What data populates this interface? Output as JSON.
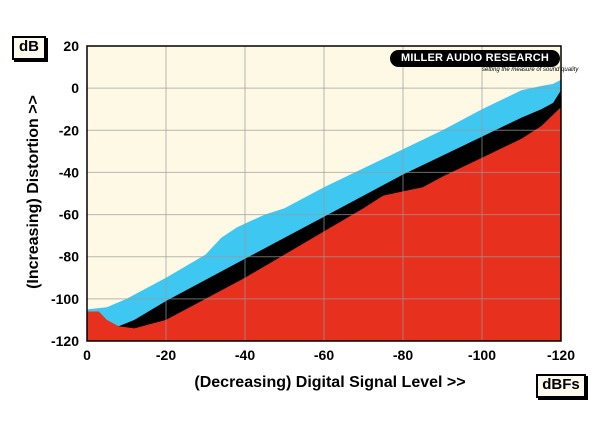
{
  "chart_data": {
    "type": "area",
    "title": "",
    "xlabel": "(Decreasing) Digital Signal Level >>",
    "ylabel": "(Increasing) Distortion >>",
    "x_unit": "dBFs",
    "y_unit": "dB",
    "xlim": [
      0,
      -120
    ],
    "ylim": [
      -120,
      20
    ],
    "x_ticks": [
      0,
      -20,
      -40,
      -60,
      -80,
      -100,
      -120
    ],
    "y_ticks": [
      20,
      0,
      -20,
      -40,
      -60,
      -80,
      -100,
      -120
    ],
    "grid": true,
    "logo": {
      "name": "MILLER AUDIO RESEARCH",
      "tagline": "setting the measure of sound quality"
    },
    "series": [
      {
        "name": "",
        "color": "#3ec7f1",
        "x": [
          0,
          -5,
          -10,
          -20,
          -30,
          -34,
          -38,
          -45,
          -50,
          -60,
          -70,
          -80,
          -90,
          -100,
          -110,
          -115,
          -118,
          -120
        ],
        "y": [
          -105,
          -104,
          -100,
          -90,
          -79,
          -71,
          -66,
          -60,
          -57,
          -47,
          -38,
          -29,
          -20,
          -10,
          -1,
          1,
          2,
          4
        ]
      },
      {
        "name": "",
        "color": "#000000",
        "x": [
          0,
          -3,
          -5,
          -8,
          -12,
          -20,
          -30,
          -40,
          -50,
          -60,
          -70,
          -80,
          -90,
          -100,
          -110,
          -115,
          -118,
          -120
        ],
        "y": [
          -106,
          -108,
          -111,
          -113,
          -110,
          -101,
          -91,
          -81,
          -71,
          -61,
          -51,
          -41,
          -32,
          -23,
          -14,
          -10,
          -7,
          -1
        ]
      },
      {
        "name": "",
        "color": "#e8301f",
        "x": [
          0,
          -3,
          -5,
          -8,
          -12,
          -20,
          -30,
          -40,
          -50,
          -60,
          -70,
          -75,
          -80,
          -85,
          -90,
          -100,
          -110,
          -115,
          -120
        ],
        "y": [
          -106,
          -106,
          -110,
          -113,
          -114,
          -110,
          -100,
          -90,
          -79,
          -68,
          -57,
          -51,
          -49,
          -47,
          -42,
          -33,
          -24,
          -18,
          -9
        ]
      }
    ]
  }
}
